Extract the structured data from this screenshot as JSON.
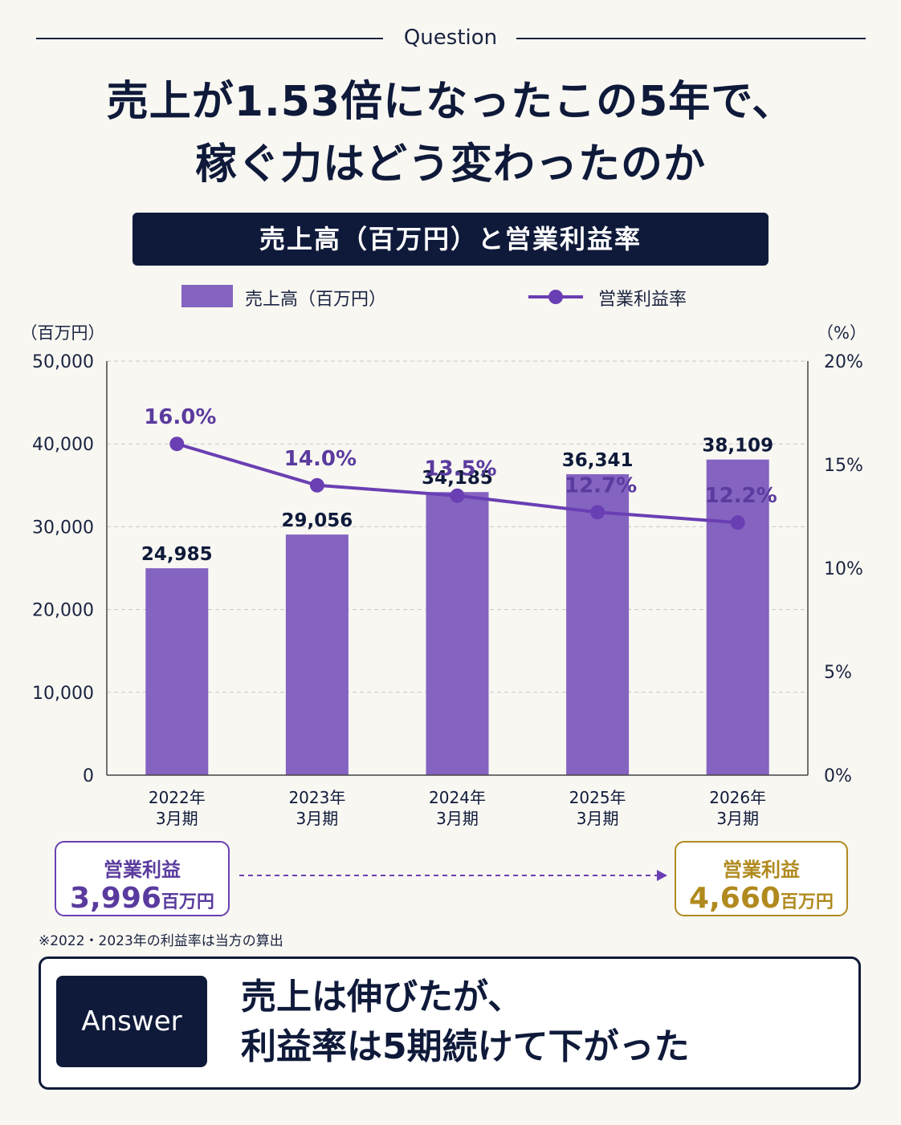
{
  "header": {
    "question_label": "Question",
    "title_line1": "売上が1.53倍になったこの5年で、",
    "title_line2": "稼ぐ力はどう変わったのか"
  },
  "banner": {
    "text": "売上高（百万円）と営業利益率"
  },
  "legend": {
    "bar_label": "売上高（百万円）",
    "line_label": "営業利益率"
  },
  "colors": {
    "bar": "#8563c1",
    "line": "#6a3fb3",
    "navy": "#0f1a3a",
    "gold": "#b08a1e",
    "purple_text": "#5a3b9e"
  },
  "chart_data": {
    "type": "bar",
    "categories": [
      "2022年\n3月期",
      "2023年\n3月期",
      "2024年\n3月期",
      "2025年\n3月期",
      "2026年\n3月期"
    ],
    "series": [
      {
        "name": "売上高（百万円）",
        "type": "bar",
        "axis": "left",
        "values": [
          24985,
          29056,
          34185,
          36341,
          38109
        ]
      },
      {
        "name": "営業利益率",
        "type": "line",
        "axis": "right",
        "values": [
          16.0,
          14.0,
          13.5,
          12.7,
          12.2
        ]
      }
    ],
    "bar_value_labels": [
      "24,985",
      "29,056",
      "34,185",
      "36,341",
      "38,109"
    ],
    "line_value_labels": [
      "16.0%",
      "14.0%",
      "13.5%",
      "12.7%",
      "12.2%"
    ],
    "y_left": {
      "unit_label": "（百万円）",
      "ylim": [
        0,
        50000
      ],
      "ticks": [
        "0",
        "10,000",
        "20,000",
        "30,000",
        "40,000",
        "50,000"
      ]
    },
    "y_right": {
      "unit_label": "（%）",
      "ylim": [
        0,
        20
      ],
      "ticks": [
        "0%",
        "5%",
        "10%",
        "15%",
        "20%"
      ]
    },
    "grid": true,
    "legend_position": "top"
  },
  "profit_start": {
    "label": "営業利益",
    "value": "3,996",
    "unit": "百万円"
  },
  "profit_end": {
    "label": "営業利益",
    "value": "4,660",
    "unit": "百万円"
  },
  "note": "※2022・2023年の利益率は当方の算出",
  "answer": {
    "tag": "Answer",
    "line1": "売上は伸びたが、",
    "line2": "利益率は5期続けて下がった"
  }
}
